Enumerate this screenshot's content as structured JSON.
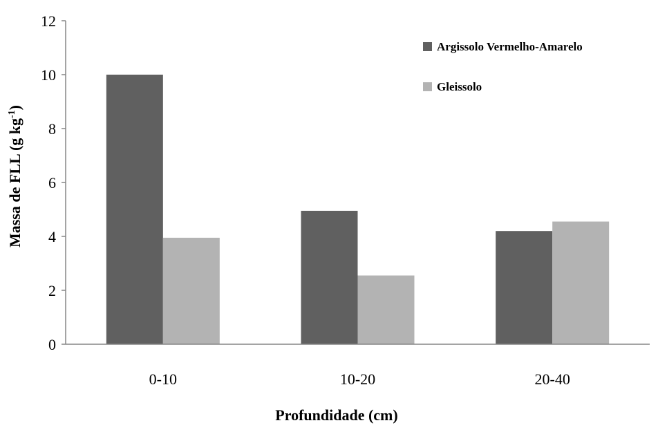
{
  "chart_data": {
    "type": "bar",
    "categories": [
      "0-10",
      "10-20",
      "20-40"
    ],
    "series": [
      {
        "name": "Argissolo Vermelho-Amarelo",
        "values": [
          10.0,
          4.95,
          4.2
        ],
        "color": "#606060"
      },
      {
        "name": "Gleissolo",
        "values": [
          3.95,
          2.55,
          4.55
        ],
        "color": "#b3b3b3"
      }
    ],
    "xlabel": "Profundidade (cm)",
    "ylabel": "Massa de FLL (g kg",
    "ylabel_sup": "-1",
    "ylabel_end": ")",
    "ylim": [
      0,
      12
    ],
    "yticks": [
      "0",
      "2",
      "4",
      "6",
      "8",
      "10",
      "12"
    ],
    "grid": false,
    "legend_position": "top-right",
    "axis_color": "#868686"
  }
}
